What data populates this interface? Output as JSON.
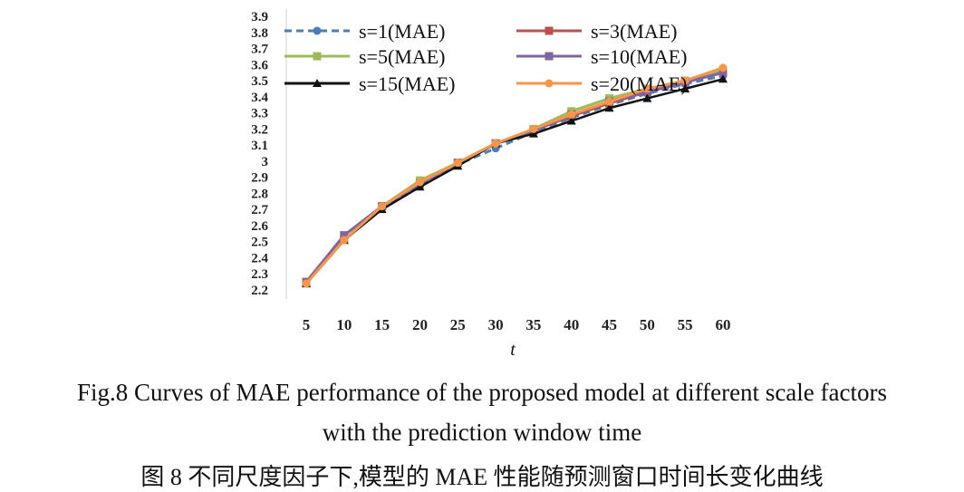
{
  "chart_data": {
    "type": "line",
    "title": "",
    "xlabel": "t",
    "ylabel": "",
    "x": [
      5,
      10,
      15,
      20,
      25,
      30,
      35,
      40,
      45,
      50,
      55,
      60
    ],
    "x_tick_labels": [
      "5",
      "10",
      "15",
      "20",
      "25",
      "30",
      "35",
      "40",
      "45",
      "50",
      "55",
      "60"
    ],
    "y_tick_labels": [
      "2.2",
      "2.3",
      "2.4",
      "2.5",
      "2.6",
      "2.7",
      "2.8",
      "2.9",
      "3",
      "3.1",
      "3.2",
      "3.3",
      "3.4",
      "3.5",
      "3.6",
      "3.7",
      "3.8",
      "3.9"
    ],
    "ylim": [
      2.2,
      3.9
    ],
    "grid": false,
    "legend_position": "top",
    "series": [
      {
        "name": "s=1(MAE)",
        "color": "#4a7ebb",
        "marker": "circle",
        "dash": "dashed",
        "values": [
          2.24,
          2.51,
          2.71,
          2.85,
          2.98,
          3.08,
          3.18,
          3.27,
          3.35,
          3.42,
          3.48,
          3.53
        ]
      },
      {
        "name": "s=3(MAE)",
        "color": "#c0504d",
        "marker": "square",
        "dash": "solid",
        "values": [
          2.24,
          2.51,
          2.72,
          2.86,
          2.99,
          3.11,
          3.19,
          3.28,
          3.36,
          3.43,
          3.49,
          3.55
        ]
      },
      {
        "name": "s=5(MAE)",
        "color": "#9bbb59",
        "marker": "square",
        "dash": "solid",
        "values": [
          2.24,
          2.51,
          2.72,
          2.88,
          2.99,
          3.11,
          3.2,
          3.31,
          3.39,
          3.45,
          3.5,
          3.56
        ]
      },
      {
        "name": "s=10(MAE)",
        "color": "#8064a2",
        "marker": "square",
        "dash": "solid",
        "values": [
          2.25,
          2.54,
          2.72,
          2.86,
          2.99,
          3.11,
          3.19,
          3.29,
          3.37,
          3.43,
          3.49,
          3.55
        ]
      },
      {
        "name": "s=15(MAE)",
        "color": "#111111",
        "marker": "triangle",
        "dash": "solid",
        "values": [
          2.24,
          2.51,
          2.7,
          2.84,
          2.97,
          3.11,
          3.17,
          3.25,
          3.33,
          3.39,
          3.45,
          3.51
        ]
      },
      {
        "name": "s=20(MAE)",
        "color": "#f79646",
        "marker": "circle",
        "dash": "solid",
        "values": [
          2.24,
          2.51,
          2.72,
          2.87,
          2.99,
          3.11,
          3.2,
          3.29,
          3.37,
          3.45,
          3.5,
          3.58
        ]
      }
    ]
  },
  "caption": {
    "en_line1": "Fig.8    Curves of MAE performance of the proposed model at different scale factors",
    "en_line2": "with the prediction window time",
    "zh": "图 8    不同尺度因子下,模型的 MAE 性能随预测窗口时间长变化曲线"
  }
}
